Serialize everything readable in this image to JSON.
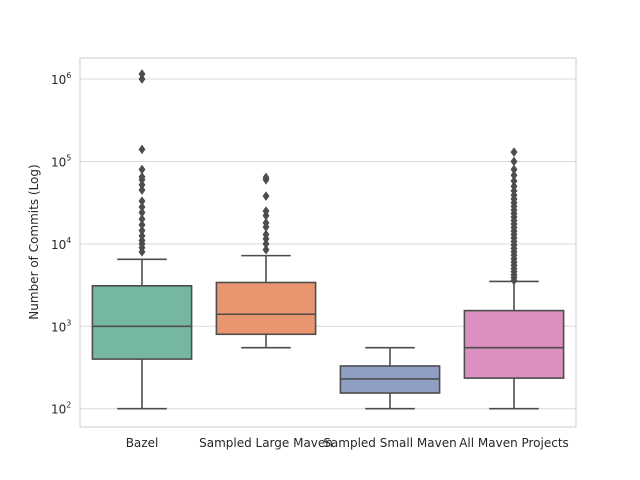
{
  "chart_data": {
    "type": "box",
    "title": "",
    "xlabel": "",
    "ylabel": "Number of Commits (Log)",
    "yscale": "log",
    "ylim": [
      60,
      1800000
    ],
    "y_ticks": [
      {
        "value": 100,
        "base": "10",
        "exp": "2"
      },
      {
        "value": 1000,
        "base": "10",
        "exp": "3"
      },
      {
        "value": 10000,
        "base": "10",
        "exp": "4"
      },
      {
        "value": 100000,
        "base": "10",
        "exp": "5"
      },
      {
        "value": 1000000,
        "base": "10",
        "exp": "6"
      }
    ],
    "grid": true,
    "colors": {
      "Bazel": "#76b7a0",
      "Sampled Large Maven": "#e9956f",
      "Sampled Small Maven": "#8f9fc4",
      "All Maven Projects": "#dc90c0",
      "line": "#4d4d4d",
      "grid": "#d9d9d9",
      "frame": "#cccccc"
    },
    "categories": [
      "Bazel",
      "Sampled Large Maven",
      "Sampled Small Maven",
      "All Maven Projects"
    ],
    "boxes": [
      {
        "category": "Bazel",
        "whisker_low": 100,
        "q1": 400,
        "median": 1000,
        "q3": 3100,
        "whisker_high": 6500,
        "outliers": [
          8000,
          9000,
          10000,
          11000,
          12500,
          14500,
          17000,
          20000,
          24000,
          28000,
          33000,
          45000,
          52000,
          60000,
          65000,
          80000,
          140000,
          1000000,
          1150000
        ]
      },
      {
        "category": "Sampled Large Maven",
        "whisker_low": 550,
        "q1": 800,
        "median": 1400,
        "q3": 3400,
        "whisker_high": 7200,
        "outliers": [
          8500,
          10000,
          11500,
          13000,
          16000,
          18000,
          22000,
          25000,
          38000,
          60000,
          64000
        ]
      },
      {
        "category": "Sampled Small Maven",
        "whisker_low": 100,
        "q1": 155,
        "median": 230,
        "q3": 330,
        "whisker_high": 550,
        "outliers": []
      },
      {
        "category": "All Maven Projects",
        "whisker_low": 100,
        "q1": 235,
        "median": 550,
        "q3": 1550,
        "whisker_high": 3500,
        "outliers": [
          3600,
          3900,
          4200,
          4600,
          5000,
          5500,
          6000,
          6600,
          7300,
          8000,
          8800,
          9700,
          10700,
          11800,
          13000,
          14300,
          15800,
          17400,
          19200,
          21200,
          23400,
          25800,
          28500,
          31500,
          35000,
          39000,
          44000,
          50000,
          58000,
          68000,
          80000,
          100000,
          130000
        ]
      }
    ]
  }
}
